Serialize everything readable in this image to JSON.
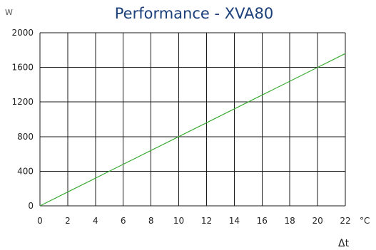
{
  "chart_data": {
    "type": "line",
    "title": "Performance - XVA80",
    "ylabel": "W",
    "xunit": "°C",
    "xlabel": "Δt",
    "xlim": [
      0,
      22
    ],
    "ylim": [
      0,
      2000
    ],
    "x_ticks": [
      "0",
      "2",
      "4",
      "6",
      "8",
      "10",
      "12",
      "14",
      "16",
      "18",
      "20",
      "22"
    ],
    "y_ticks": [
      "0",
      "400",
      "800",
      "1200",
      "1600",
      "2000"
    ],
    "grid": true,
    "legend": "none",
    "series": [
      {
        "color": "#3aaa35",
        "points": [
          {
            "x": 0,
            "y": 0
          },
          {
            "x": 2,
            "y": 160
          },
          {
            "x": 4,
            "y": 320
          },
          {
            "x": 5,
            "y": 400
          },
          {
            "x": 10,
            "y": 800
          },
          {
            "x": 15,
            "y": 1200
          },
          {
            "x": 20,
            "y": 1600
          },
          {
            "x": 22,
            "y": 1760
          }
        ]
      }
    ]
  }
}
